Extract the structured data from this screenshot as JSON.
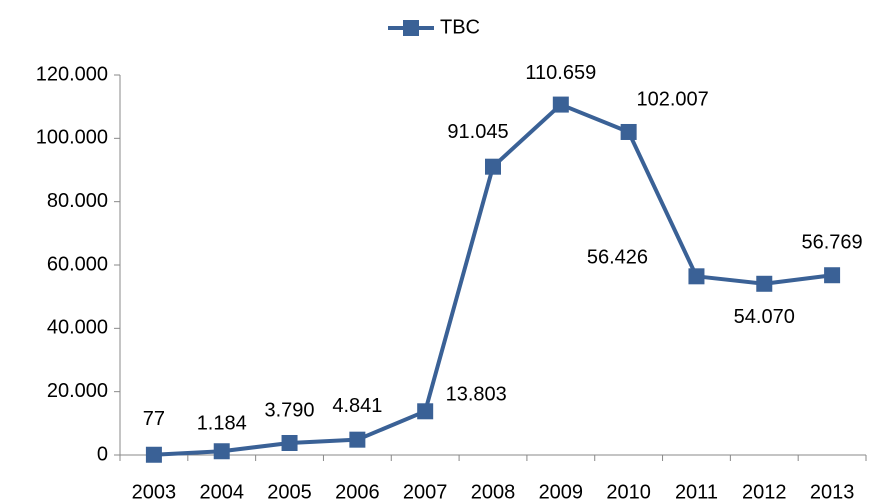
{
  "chart_data": {
    "type": "line",
    "categories": [
      "2003",
      "2004",
      "2005",
      "2006",
      "2007",
      "2008",
      "2009",
      "2010",
      "2011",
      "2012",
      "2013"
    ],
    "series": [
      {
        "name": "TBC",
        "color": "#3a6196",
        "values": [
          77,
          1184,
          3790,
          4841,
          13803,
          91045,
          110659,
          102007,
          56426,
          54070,
          56769
        ],
        "value_labels": [
          "77",
          "1.184",
          "3.790",
          "4.841",
          "13.803",
          "91.045",
          "110.659",
          "102.007",
          "56.426",
          "54.070",
          "56.769"
        ]
      }
    ],
    "ylim": [
      0,
      120000
    ],
    "yticks": [
      0,
      {
        "value": 20000,
        "label": "20.000"
      },
      {
        "value": 40000,
        "label": "40.000"
      },
      {
        "value": 60000,
        "label": "60.000"
      },
      {
        "value": 80000,
        "label": "80.000"
      },
      {
        "value": 100000,
        "label": "100.000"
      },
      {
        "value": 120000,
        "label": "120.000"
      }
    ],
    "legend": "top"
  }
}
